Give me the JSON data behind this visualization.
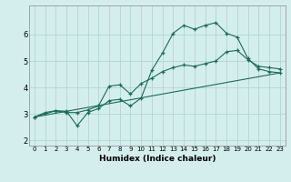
{
  "xlabel": "Humidex (Indice chaleur)",
  "bg_color": "#d4eeed",
  "grid_color": "#b8d8d8",
  "line_color": "#1a6b5a",
  "xlim": [
    -0.5,
    23.5
  ],
  "ylim": [
    1.8,
    7.1
  ],
  "yticks": [
    2,
    3,
    4,
    5,
    6
  ],
  "xticks": [
    0,
    1,
    2,
    3,
    4,
    5,
    6,
    7,
    8,
    9,
    10,
    11,
    12,
    13,
    14,
    15,
    16,
    17,
    18,
    19,
    20,
    21,
    22,
    23
  ],
  "line1_x": [
    0,
    1,
    2,
    3,
    4,
    5,
    6,
    7,
    8,
    9,
    10,
    11,
    12,
    13,
    14,
    15,
    16,
    17,
    18,
    19,
    20,
    21,
    22,
    23
  ],
  "line1_y": [
    2.88,
    3.05,
    3.12,
    3.1,
    2.55,
    3.05,
    3.2,
    3.5,
    3.55,
    3.3,
    3.6,
    4.65,
    5.3,
    6.05,
    6.35,
    6.2,
    6.35,
    6.45,
    6.05,
    5.9,
    5.1,
    4.7,
    4.6,
    4.55
  ],
  "line2_x": [
    0,
    2,
    3,
    4,
    5,
    6,
    7,
    8,
    9,
    10,
    11,
    12,
    13,
    14,
    15,
    16,
    17,
    18,
    19,
    20,
    21,
    22,
    23
  ],
  "line2_y": [
    2.88,
    3.12,
    3.05,
    3.05,
    3.15,
    3.3,
    4.05,
    4.1,
    3.75,
    4.15,
    4.35,
    4.6,
    4.75,
    4.85,
    4.8,
    4.9,
    5.0,
    5.35,
    5.4,
    5.05,
    4.8,
    4.75,
    4.7
  ],
  "line3_x": [
    0,
    23
  ],
  "line3_y": [
    2.88,
    4.55
  ]
}
